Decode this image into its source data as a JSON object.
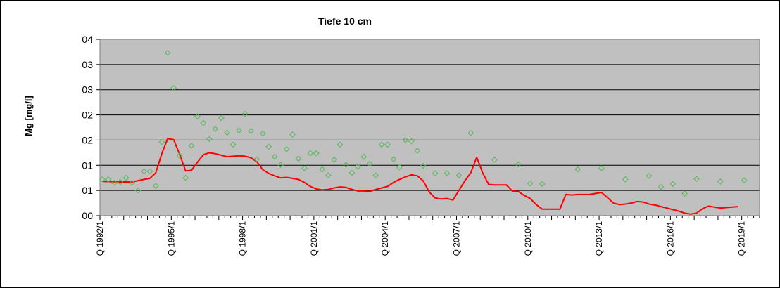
{
  "chart_data": {
    "type": "scatter",
    "title": "Tiefe  10 cm",
    "ylabel": "Mg [mg/l]",
    "xlabel": "",
    "y_tick_labels": [
      "00",
      "01",
      "01",
      "02",
      "02",
      "03",
      "03",
      "04"
    ],
    "ylim": [
      0,
      0.035
    ],
    "x_tick_labels": [
      "Q 1992/1",
      "Q 1995/1",
      "Q 1998/1",
      "Q 2001/1",
      "Q 2004/1",
      "Q 2007/1",
      "Q 2010/1",
      "Q 2013/1",
      "Q 2016/1",
      "Q 2019/1"
    ],
    "xlim": [
      1992.0,
      2019.75
    ],
    "grid": "horizontal",
    "colors": {
      "points": "#5cb85c",
      "trend": "#ff0000",
      "plot_area": "#c0c0c0",
      "grid": "#000000"
    },
    "series": [
      {
        "type": "scatter",
        "points": [
          [
            1992.1,
            0.0072
          ],
          [
            1992.35,
            0.0072
          ],
          [
            1992.6,
            0.0065
          ],
          [
            1992.85,
            0.0067
          ],
          [
            1993.1,
            0.0075
          ],
          [
            1993.35,
            0.0065
          ],
          [
            1993.6,
            0.005
          ],
          [
            1993.85,
            0.0088
          ],
          [
            1994.1,
            0.0088
          ],
          [
            1994.35,
            0.0059
          ],
          [
            1994.6,
            0.0146
          ],
          [
            1994.85,
            0.0323
          ],
          [
            1995.1,
            0.0253
          ],
          [
            1995.35,
            0.0119
          ],
          [
            1995.6,
            0.0075
          ],
          [
            1995.85,
            0.0139
          ],
          [
            1996.1,
            0.0197
          ],
          [
            1996.35,
            0.0184
          ],
          [
            1996.6,
            0.0152
          ],
          [
            1996.85,
            0.0172
          ],
          [
            1997.1,
            0.0194
          ],
          [
            1997.35,
            0.0165
          ],
          [
            1997.6,
            0.0141
          ],
          [
            1997.85,
            0.0169
          ],
          [
            1998.1,
            0.0202
          ],
          [
            1998.35,
            0.0168
          ],
          [
            1998.6,
            0.0112
          ],
          [
            1998.85,
            0.0163
          ],
          [
            1999.1,
            0.0137
          ],
          [
            1999.35,
            0.0117
          ],
          [
            1999.6,
            0.0101
          ],
          [
            1999.85,
            0.0132
          ],
          [
            2000.1,
            0.0161
          ],
          [
            2000.35,
            0.0113
          ],
          [
            2000.6,
            0.0094
          ],
          [
            2000.85,
            0.0124
          ],
          [
            2001.1,
            0.0124
          ],
          [
            2001.35,
            0.0092
          ],
          [
            2001.6,
            0.008
          ],
          [
            2001.85,
            0.0111
          ],
          [
            2002.1,
            0.0141
          ],
          [
            2002.35,
            0.0101
          ],
          [
            2002.6,
            0.0085
          ],
          [
            2002.85,
            0.0097
          ],
          [
            2003.1,
            0.0117
          ],
          [
            2003.35,
            0.0103
          ],
          [
            2003.6,
            0.008
          ],
          [
            2003.85,
            0.0141
          ],
          [
            2004.1,
            0.0141
          ],
          [
            2004.35,
            0.0112
          ],
          [
            2004.6,
            0.0096
          ],
          [
            2004.85,
            0.015
          ],
          [
            2005.1,
            0.0148
          ],
          [
            2005.35,
            0.0129
          ],
          [
            2005.6,
            0.0099
          ],
          [
            2006.1,
            0.0084
          ],
          [
            2006.6,
            0.0084
          ],
          [
            2007.1,
            0.008
          ],
          [
            2007.6,
            0.0164
          ],
          [
            2008.6,
            0.0111
          ],
          [
            2009.6,
            0.0102
          ],
          [
            2010.1,
            0.0064
          ],
          [
            2010.6,
            0.0063
          ],
          [
            2012.1,
            0.0092
          ],
          [
            2013.1,
            0.0094
          ],
          [
            2014.1,
            0.0072
          ],
          [
            2015.1,
            0.0079
          ],
          [
            2015.6,
            0.0057
          ],
          [
            2016.1,
            0.0063
          ],
          [
            2016.6,
            0.0044
          ],
          [
            2017.1,
            0.0073
          ],
          [
            2018.1,
            0.0068
          ],
          [
            2019.1,
            0.007
          ]
        ]
      },
      {
        "type": "line",
        "points": [
          [
            1992.1,
            0.0068
          ],
          [
            1992.85,
            0.0067
          ],
          [
            1993.35,
            0.0067
          ],
          [
            1993.85,
            0.0072
          ],
          [
            1994.1,
            0.0074
          ],
          [
            1994.35,
            0.0085
          ],
          [
            1994.6,
            0.0123
          ],
          [
            1994.85,
            0.0153
          ],
          [
            1995.1,
            0.0151
          ],
          [
            1995.35,
            0.0122
          ],
          [
            1995.6,
            0.0089
          ],
          [
            1995.85,
            0.009
          ],
          [
            1996.1,
            0.0106
          ],
          [
            1996.35,
            0.0121
          ],
          [
            1996.6,
            0.0125
          ],
          [
            1996.85,
            0.0123
          ],
          [
            1997.1,
            0.012
          ],
          [
            1997.35,
            0.0117
          ],
          [
            1997.6,
            0.0118
          ],
          [
            1997.85,
            0.0119
          ],
          [
            1998.1,
            0.0118
          ],
          [
            1998.35,
            0.0115
          ],
          [
            1998.6,
            0.0107
          ],
          [
            1998.85,
            0.0091
          ],
          [
            1999.1,
            0.0084
          ],
          [
            1999.35,
            0.0079
          ],
          [
            1999.6,
            0.0075
          ],
          [
            1999.85,
            0.0076
          ],
          [
            2000.1,
            0.0074
          ],
          [
            2000.35,
            0.0072
          ],
          [
            2000.6,
            0.0066
          ],
          [
            2000.85,
            0.0058
          ],
          [
            2001.1,
            0.0053
          ],
          [
            2001.35,
            0.0051
          ],
          [
            2001.6,
            0.0052
          ],
          [
            2001.85,
            0.0055
          ],
          [
            2002.1,
            0.0057
          ],
          [
            2002.35,
            0.0056
          ],
          [
            2002.6,
            0.0052
          ],
          [
            2002.85,
            0.0049
          ],
          [
            2003.1,
            0.0049
          ],
          [
            2003.35,
            0.0048
          ],
          [
            2003.6,
            0.0052
          ],
          [
            2003.85,
            0.0055
          ],
          [
            2004.1,
            0.0058
          ],
          [
            2004.35,
            0.0066
          ],
          [
            2004.6,
            0.0072
          ],
          [
            2004.85,
            0.0077
          ],
          [
            2005.1,
            0.0081
          ],
          [
            2005.35,
            0.0079
          ],
          [
            2005.6,
            0.0069
          ],
          [
            2005.85,
            0.0047
          ],
          [
            2006.1,
            0.0035
          ],
          [
            2006.35,
            0.0033
          ],
          [
            2006.6,
            0.0034
          ],
          [
            2006.85,
            0.0031
          ],
          [
            2007.1,
            0.005
          ],
          [
            2007.35,
            0.0069
          ],
          [
            2007.6,
            0.0085
          ],
          [
            2007.85,
            0.0116
          ],
          [
            2008.1,
            0.0085
          ],
          [
            2008.35,
            0.0062
          ],
          [
            2008.6,
            0.0061
          ],
          [
            2008.85,
            0.0061
          ],
          [
            2009.1,
            0.0061
          ],
          [
            2009.35,
            0.0049
          ],
          [
            2009.6,
            0.0048
          ],
          [
            2009.85,
            0.004
          ],
          [
            2010.1,
            0.0034
          ],
          [
            2010.35,
            0.0022
          ],
          [
            2010.6,
            0.0013
          ],
          [
            2010.85,
            0.0013
          ],
          [
            2011.1,
            0.0013
          ],
          [
            2011.35,
            0.0013
          ],
          [
            2011.6,
            0.0042
          ],
          [
            2011.85,
            0.0041
          ],
          [
            2012.1,
            0.0042
          ],
          [
            2012.35,
            0.0042
          ],
          [
            2012.6,
            0.0042
          ],
          [
            2012.85,
            0.0044
          ],
          [
            2013.1,
            0.0046
          ],
          [
            2013.35,
            0.0036
          ],
          [
            2013.6,
            0.0025
          ],
          [
            2013.85,
            0.0022
          ],
          [
            2014.1,
            0.0023
          ],
          [
            2014.35,
            0.0025
          ],
          [
            2014.6,
            0.0028
          ],
          [
            2014.85,
            0.0027
          ],
          [
            2015.1,
            0.0023
          ],
          [
            2015.35,
            0.0021
          ],
          [
            2015.6,
            0.0018
          ],
          [
            2015.85,
            0.0015
          ],
          [
            2016.1,
            0.0012
          ],
          [
            2016.35,
            0.0009
          ],
          [
            2016.6,
            0.0005
          ],
          [
            2016.85,
            0.0003
          ],
          [
            2017.1,
            0.0005
          ],
          [
            2017.35,
            0.0014
          ],
          [
            2017.6,
            0.0019
          ],
          [
            2017.85,
            0.0017
          ],
          [
            2018.1,
            0.0015
          ],
          [
            2018.35,
            0.0016
          ],
          [
            2018.6,
            0.0017
          ],
          [
            2018.85,
            0.0018
          ]
        ]
      }
    ]
  }
}
